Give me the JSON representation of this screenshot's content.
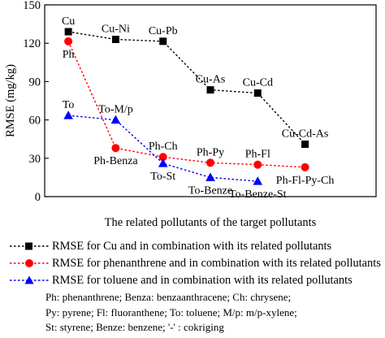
{
  "chart_data": {
    "type": "line",
    "title": "",
    "xlabel": "The related pollutants of the target pollutants",
    "ylabel": "RMSE (mg/kg)",
    "ylim": [
      0,
      150
    ],
    "yticks": [
      0,
      30,
      60,
      90,
      120,
      150
    ],
    "xlim": [
      0.5,
      7.5
    ],
    "grid": false,
    "legend_position": "below",
    "series": [
      {
        "name": "RMSE for Cu and in combination with its related pollutants",
        "color": "#000000",
        "marker": "square",
        "x": [
          1,
          2,
          3,
          4,
          5,
          6
        ],
        "values": [
          129,
          123,
          121.5,
          83.5,
          81,
          41
        ],
        "labels": [
          "Cu",
          "Cu-Ni",
          "Cu-Pb",
          "Cu-As",
          "Cu-Cd",
          "Cu-Cd-As"
        ],
        "label_positions": [
          "above",
          "above",
          "above",
          "above",
          "above",
          "above"
        ]
      },
      {
        "name": "RMSE for phenanthrene and in combination with its related pollutants",
        "color": "#ff0000",
        "marker": "circle",
        "x": [
          1,
          2,
          3,
          4,
          5,
          6
        ],
        "values": [
          121.5,
          38,
          31,
          26.5,
          25,
          23
        ],
        "labels": [
          "Ph",
          "Ph-Benza",
          "Ph-Ch",
          "Ph-Py",
          "Ph-Fl",
          "Ph-Fl-Py-Ch"
        ],
        "label_positions": [
          "below",
          "below",
          "above",
          "above",
          "above",
          "below"
        ]
      },
      {
        "name": "RMSE for toluene and in combination with its related pollutants",
        "color": "#0000ff",
        "marker": "triangle",
        "x": [
          1,
          2,
          3,
          4,
          5
        ],
        "values": [
          63.5,
          60,
          26,
          15,
          12
        ],
        "labels": [
          "To",
          "To-M/p",
          "To-St",
          "To-Benze",
          "To-Benze-St"
        ],
        "label_positions": [
          "above",
          "above",
          "below",
          "below",
          "below"
        ]
      }
    ]
  },
  "notes": [
    "Ph: phenanthrene; Benza: benzaanthracene; Ch: chrysene;",
    "Py: pyrene; Fl: fluoranthene; To: toluene; M/p: m/p-xylene;",
    "St: styrene; Benze: benzene; '-' : cokriging"
  ]
}
